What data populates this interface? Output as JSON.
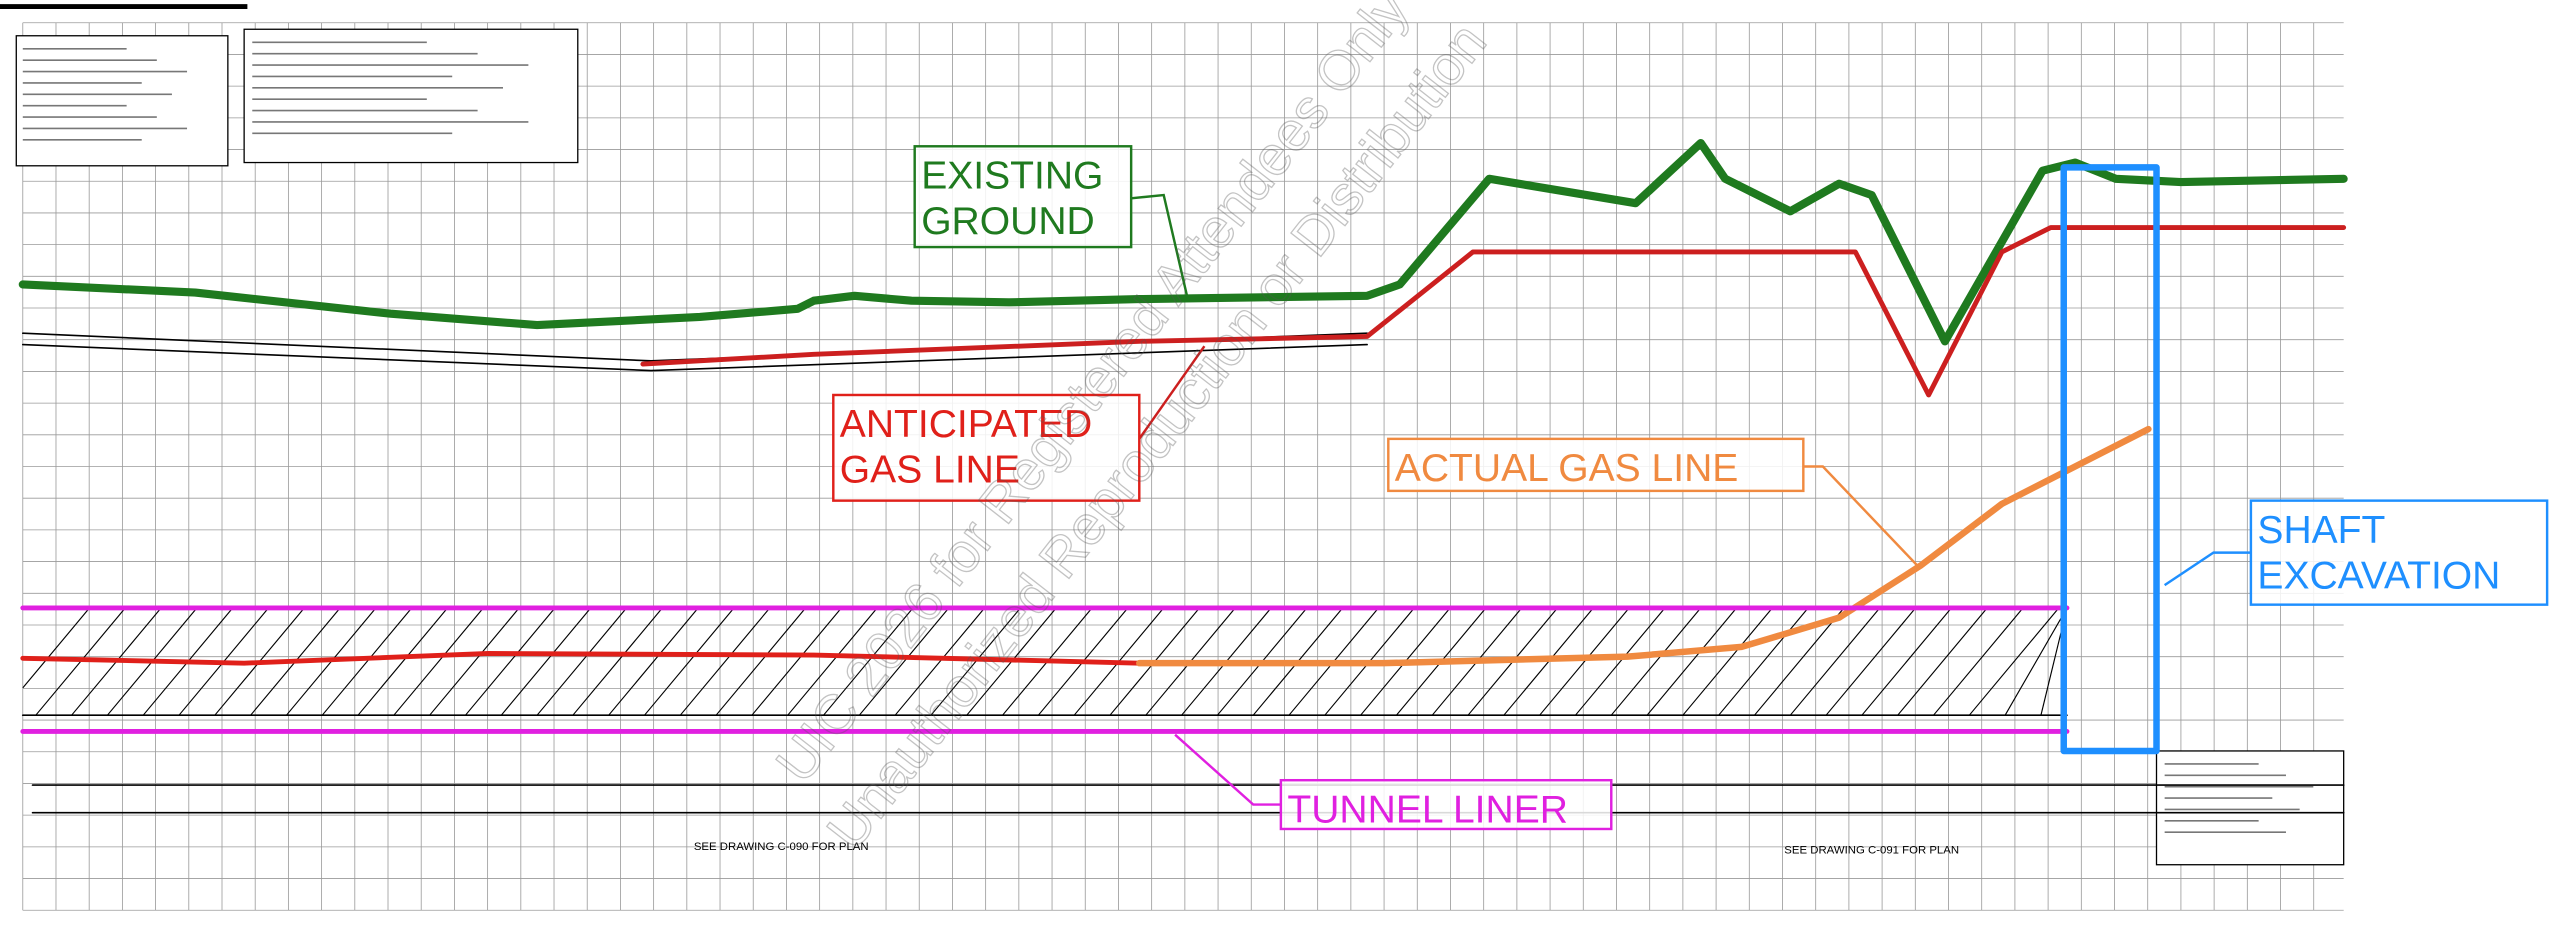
{
  "callouts": {
    "existing_ground": {
      "lines": [
        "EXISTING",
        "GROUND"
      ]
    },
    "anticipated_gas_line": {
      "lines": [
        "ANTICIPATED",
        "GAS LINE"
      ]
    },
    "actual_gas_line": {
      "lines": [
        "ACTUAL GAS LINE"
      ]
    },
    "shaft_excavation": {
      "lines": [
        "SHAFT",
        "EXCAVATION"
      ]
    },
    "tunnel_liner": {
      "lines": [
        "TUNNEL LINER"
      ]
    }
  },
  "plan_references": [
    "SEE DRAWING C-090 FOR PLAN",
    "SEE DRAWING C-091 FOR PLAN"
  ],
  "watermark": [
    "UIC 2026 for Registered Attendees Only",
    "Unauthorized Reproduction or Distribution"
  ]
}
